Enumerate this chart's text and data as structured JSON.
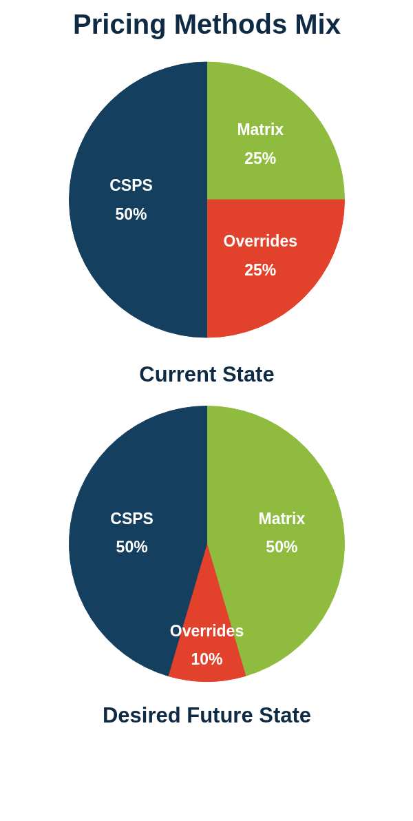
{
  "chart_data": [
    {
      "type": "pie",
      "title": "Pricing Methods Mix",
      "xlabel": "Current State",
      "categories": [
        "Matrix",
        "Overrides",
        "CSPS"
      ],
      "values": [
        25,
        25,
        50
      ],
      "value_labels": [
        "25%",
        "25%",
        "50%"
      ],
      "colors": [
        "#8fbb3f",
        "#e2412b",
        "#153f5f"
      ]
    },
    {
      "type": "pie",
      "xlabel": "Desired Future State",
      "categories": [
        "Matrix",
        "Overrides",
        "CSPS"
      ],
      "values": [
        50,
        10,
        50
      ],
      "value_labels": [
        "50%",
        "10%",
        "50%"
      ],
      "colors": [
        "#8fbb3f",
        "#e2412b",
        "#153f5f"
      ]
    }
  ]
}
